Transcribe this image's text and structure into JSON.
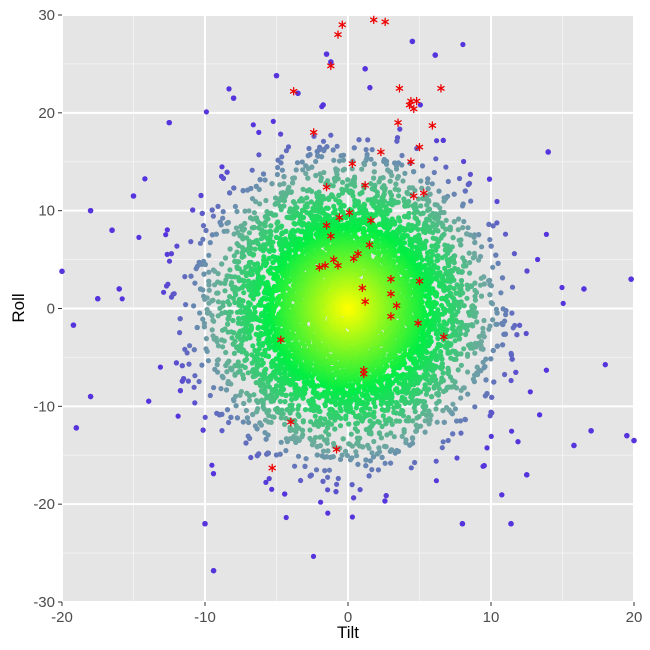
{
  "chart_data": {
    "type": "scatter",
    "title": "",
    "xlabel": "Tilt",
    "ylabel": "Roll",
    "xlim": [
      -20,
      20
    ],
    "ylim": [
      -30,
      30
    ],
    "x_ticks": [
      -20,
      -10,
      0,
      10,
      20
    ],
    "y_ticks": [
      -30,
      -20,
      -10,
      0,
      10,
      20,
      30
    ],
    "grid": true,
    "legend": "none",
    "colors": {
      "panel": "#e5e5e5",
      "grid_major": "#ffffff",
      "grid_minor": "#f2f2f2",
      "center": "#ffff00",
      "mid": "#00ee44",
      "outer": "#6fa8a0",
      "far": "#5533dd",
      "highlight": "#ee0000"
    },
    "series": [
      {
        "marker": "circle",
        "color_by": "distance from origin",
        "x_mean": 0,
        "y_mean": 0,
        "x_sd": 4.2,
        "y_sd": 6.3,
        "n_points": 9000,
        "outliers": [
          [
            -18,
            10
          ],
          [
            -19,
            -12.2
          ],
          [
            -19.2,
            -1.7
          ],
          [
            -18,
            -9
          ],
          [
            -20,
            3.8
          ],
          [
            -9.4,
            -26.8
          ],
          [
            11.4,
            -22
          ],
          [
            20,
            -13.5
          ],
          [
            19.8,
            3
          ],
          [
            19.5,
            -13
          ],
          [
            6.1,
            25.9
          ],
          [
            4.5,
            27.3
          ],
          [
            -3.5,
            22
          ],
          [
            -5,
            23.8
          ],
          [
            -12.5,
            19
          ],
          [
            -8,
            21.5
          ],
          [
            -16,
            2
          ],
          [
            -17.5,
            1
          ],
          [
            15.8,
            -14
          ],
          [
            17,
            -12.5
          ],
          [
            12.5,
            -17
          ],
          [
            -1.2,
            25.2
          ],
          [
            -1.5,
            26
          ],
          [
            1.2,
            24.5
          ],
          [
            -10,
            -22
          ],
          [
            8,
            -22
          ],
          [
            16.5,
            2
          ],
          [
            -15,
            11.5
          ],
          [
            -16.5,
            8
          ],
          [
            14,
            16
          ]
        ]
      },
      {
        "marker": "asterisk",
        "color": "#ee0000",
        "points": [
          [
            1.8,
            29.5
          ],
          [
            2.6,
            29.3
          ],
          [
            -0.4,
            29
          ],
          [
            -0.7,
            28
          ],
          [
            -1.2,
            24.8
          ],
          [
            -3.8,
            22.2
          ],
          [
            3.6,
            22.5
          ],
          [
            6.5,
            22.5
          ],
          [
            4.8,
            21.2
          ],
          [
            4.4,
            21.2
          ],
          [
            4.3,
            20.8
          ],
          [
            4.6,
            20.4
          ],
          [
            3.5,
            19
          ],
          [
            5.9,
            18.7
          ],
          [
            -2.4,
            18
          ],
          [
            5.0,
            16.5
          ],
          [
            2.3,
            16
          ],
          [
            4.4,
            15
          ],
          [
            0.3,
            14.8
          ],
          [
            -1.5,
            12.4
          ],
          [
            1.2,
            12.6
          ],
          [
            5.3,
            11.8
          ],
          [
            4.6,
            11.5
          ],
          [
            0.1,
            9.8
          ],
          [
            -0.6,
            9.3
          ],
          [
            1.6,
            9.0
          ],
          [
            -1.5,
            8.5
          ],
          [
            -1.2,
            7.4
          ],
          [
            1.5,
            6.5
          ],
          [
            0.7,
            5.6
          ],
          [
            0.4,
            5.1
          ],
          [
            -1.0,
            5.0
          ],
          [
            -0.7,
            4.4
          ],
          [
            -2.0,
            4.2
          ],
          [
            -1.6,
            4.4
          ],
          [
            3.0,
            3.0
          ],
          [
            5.0,
            2.8
          ],
          [
            1.0,
            2.1
          ],
          [
            3.0,
            1.5
          ],
          [
            1.2,
            0.7
          ],
          [
            3.4,
            0.3
          ],
          [
            3.0,
            -0.8
          ],
          [
            4.9,
            -1.5
          ],
          [
            6.7,
            -2.9
          ],
          [
            -4.7,
            -3.2
          ],
          [
            1.1,
            -6.3
          ],
          [
            1.1,
            -6.7
          ],
          [
            -4.0,
            -11.6
          ],
          [
            -0.8,
            -14.4
          ],
          [
            -5.3,
            -16.3
          ]
        ]
      }
    ]
  }
}
